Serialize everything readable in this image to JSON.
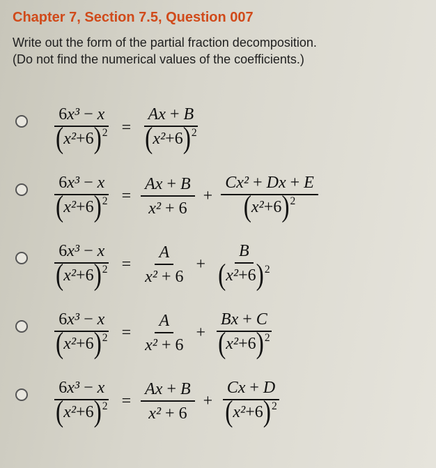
{
  "header": {
    "title": "Chapter 7, Section 7.5, Question 007"
  },
  "instructions": {
    "line1": "Write out the form of the partial fraction decomposition.",
    "line2": "(Do not find the numerical values of the coefficients.)"
  },
  "lhs": {
    "numerator": "6x³ − x",
    "denom_inner": "x² + 6",
    "denom_exp": "2"
  },
  "options": [
    {
      "terms": [
        {
          "num": "Ax + B",
          "den_inner": "x² + 6",
          "den_paren": true,
          "den_exp": "2"
        }
      ]
    },
    {
      "terms": [
        {
          "num": "Ax + B",
          "den_inner": "x² + 6",
          "den_paren": false,
          "den_exp": ""
        },
        {
          "num": "Cx² + Dx + E",
          "den_inner": "x² + 6",
          "den_paren": true,
          "den_exp": "2"
        }
      ]
    },
    {
      "terms": [
        {
          "num": "A",
          "den_inner": "x² + 6",
          "den_paren": false,
          "den_exp": ""
        },
        {
          "num": "B",
          "den_inner": "x² + 6",
          "den_paren": true,
          "den_exp": "2"
        }
      ]
    },
    {
      "terms": [
        {
          "num": "A",
          "den_inner": "x² + 6",
          "den_paren": false,
          "den_exp": ""
        },
        {
          "num": "Bx + C",
          "den_inner": "x² + 6",
          "den_paren": true,
          "den_exp": "2"
        }
      ]
    },
    {
      "terms": [
        {
          "num": "Ax + B",
          "den_inner": "x² + 6",
          "den_paren": false,
          "den_exp": ""
        },
        {
          "num": "Cx + D",
          "den_inner": "x² + 6",
          "den_paren": true,
          "den_exp": "2"
        }
      ]
    }
  ],
  "symbols": {
    "equals": "=",
    "plus": "+"
  },
  "style": {
    "title_color": "#d04a1a",
    "text_color": "#2a2a2a",
    "math_color": "#111111",
    "rule_color": "#111111",
    "background_gradient": [
      "#c8c6ba",
      "#e6e4dc"
    ],
    "title_fontsize": 20,
    "body_fontsize": 18,
    "math_fontsize": 24,
    "radio_border": "#555555",
    "font_family_ui": "Verdana",
    "font_family_math": "Cambria Math / Times New Roman (italic)"
  }
}
